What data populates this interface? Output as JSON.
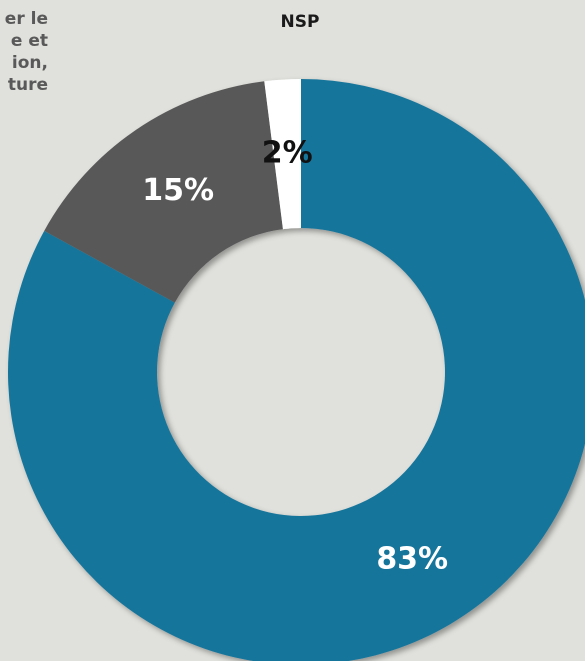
{
  "chart_data": {
    "type": "donut",
    "categories": [
      null,
      [
        "er le",
        "e et",
        "ion,",
        "ture"
      ],
      "NSP"
    ],
    "values": [
      83,
      15,
      2
    ],
    "value_labels": [
      "83%",
      "15%",
      "2%"
    ],
    "colors": [
      "#17759b",
      "#595959",
      "#ffffff"
    ],
    "label_colors": [
      "#ffffff",
      "#ffffff",
      "#111111"
    ]
  }
}
